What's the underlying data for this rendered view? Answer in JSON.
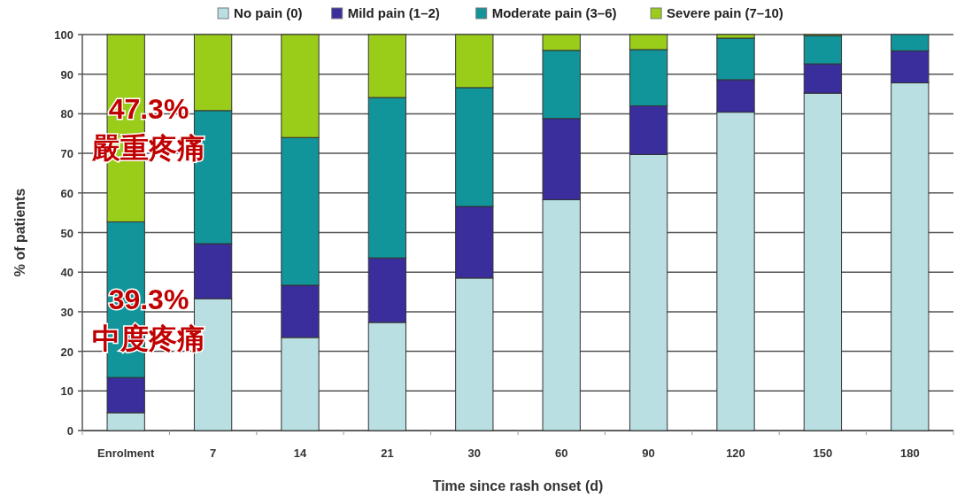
{
  "chart_data": {
    "type": "bar",
    "stacked": true,
    "xlabel": "Time since rash onset (d)",
    "ylabel": "% of patients",
    "categories": [
      "Enrolment",
      "7",
      "14",
      "21",
      "30",
      "60",
      "90",
      "120",
      "150",
      "180"
    ],
    "series": [
      {
        "name": "No pain (0)",
        "color": "#b9dfe3",
        "values": [
          4.5,
          33.3,
          23.5,
          27.3,
          38.5,
          58.3,
          69.7,
          80.4,
          85.2,
          87.8
        ]
      },
      {
        "name": "Mild pain (1–2)",
        "color": "#3a2d9c",
        "values": [
          8.9,
          13.9,
          13.2,
          16.3,
          18.1,
          20.5,
          12.3,
          8.2,
          7.4,
          8.1
        ]
      },
      {
        "name": "Moderate pain (3–6)",
        "color": "#12959a",
        "values": [
          39.3,
          33.6,
          37.3,
          40.5,
          30.0,
          17.2,
          14.2,
          10.5,
          7.1,
          4.1
        ]
      },
      {
        "name": "Severe pain (7–10)",
        "color": "#9acd1a",
        "values": [
          47.3,
          19.2,
          26.0,
          15.9,
          13.4,
          4.0,
          3.8,
          0.9,
          0.3,
          0
        ]
      }
    ],
    "ylim": [
      0,
      100
    ],
    "yticks": [
      0,
      10,
      20,
      30,
      40,
      50,
      60,
      70,
      80,
      90,
      100
    ],
    "grid": "y",
    "legend": "top",
    "annotations": [
      "47.3%\n嚴重疼痛",
      "39.3%\n中度疼痛"
    ]
  }
}
